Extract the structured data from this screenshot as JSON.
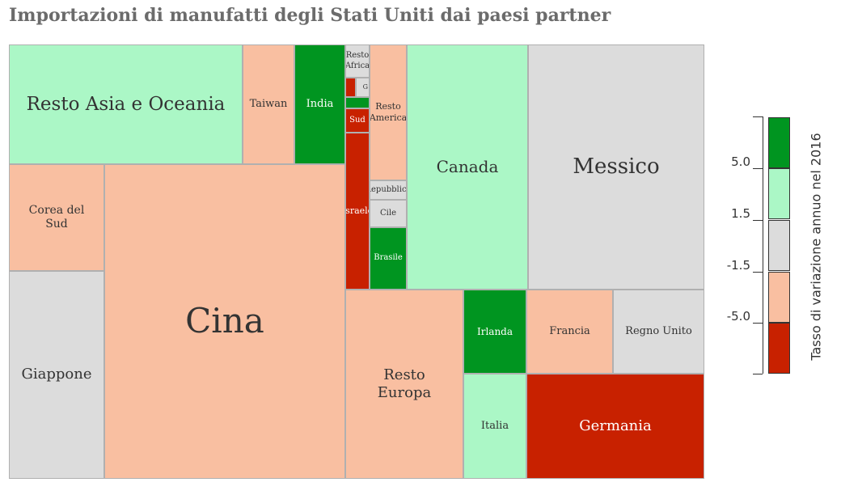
{
  "title": "Importazioni di manufatti degli Stati Uniti dai paesi partner",
  "colors": {
    "dark_green": "#009520",
    "light_green": "#abf7c6",
    "grey": "#dcdcdc",
    "salmon": "#f9bfa1",
    "dark_red": "#c82100"
  },
  "chart_data": {
    "type": "treemap",
    "title": "Importazioni di manufatti degli Stati Uniti dai paesi partner",
    "legend": {
      "title": "Tasso di variazione annuo nel 2016",
      "ticks": [
        "5.0",
        "1.5",
        "-1.5",
        "-5.0"
      ],
      "classes": [
        {
          "range": "> 5.0",
          "color": "#009520"
        },
        {
          "range": "1.5 – 5.0",
          "color": "#abf7c6"
        },
        {
          "range": "-1.5 – 1.5",
          "color": "#dcdcdc"
        },
        {
          "range": "-5.0 – -1.5",
          "color": "#f9bfa1"
        },
        {
          "range": "< -5.0",
          "color": "#c82100"
        }
      ],
      "placement": "right"
    },
    "cells": [
      {
        "name": "Resto Asia e Oceania",
        "class": "light_green"
      },
      {
        "name": "Taiwan",
        "class": "salmon"
      },
      {
        "name": "India",
        "class": "dark_green"
      },
      {
        "name": "Corea del Sud",
        "class": "salmon"
      },
      {
        "name": "Giappone",
        "class": "grey"
      },
      {
        "name": "Cina",
        "class": "salmon"
      },
      {
        "name": "Resto Africa",
        "class": "grey"
      },
      {
        "name": "",
        "class": "dark_red"
      },
      {
        "name": "",
        "class": "grey"
      },
      {
        "name": "G",
        "class": "grey"
      },
      {
        "name": "",
        "class": "dark_green"
      },
      {
        "name": "Sud",
        "class": "dark_red"
      },
      {
        "name": "Israele",
        "class": "dark_red"
      },
      {
        "name": "Resto America",
        "class": "salmon"
      },
      {
        "name": "Repubblica",
        "class": "grey"
      },
      {
        "name": "Cile",
        "class": "grey"
      },
      {
        "name": "Brasile",
        "class": "dark_green"
      },
      {
        "name": "Canada",
        "class": "light_green"
      },
      {
        "name": "Messico",
        "class": "grey"
      },
      {
        "name": "Resto Europa",
        "class": "salmon"
      },
      {
        "name": "Irlanda",
        "class": "dark_green"
      },
      {
        "name": "Italia",
        "class": "light_green"
      },
      {
        "name": "Francia",
        "class": "salmon"
      },
      {
        "name": "Regno Unito",
        "class": "grey"
      },
      {
        "name": "Germania",
        "class": "dark_red"
      }
    ]
  }
}
